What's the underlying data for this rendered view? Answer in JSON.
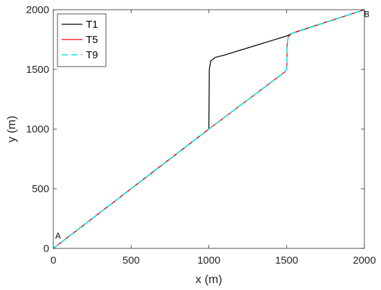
{
  "chart_data": {
    "type": "line",
    "title": "",
    "xlabel": "x (m)",
    "ylabel": "y (m)",
    "xlim": [
      0,
      2000
    ],
    "ylim": [
      0,
      2000
    ],
    "xticks": [
      0,
      500,
      1000,
      1500,
      2000
    ],
    "yticks": [
      0,
      500,
      1000,
      1500,
      2000
    ],
    "grid": false,
    "legend_position": "top-left",
    "series": [
      {
        "name": "T1",
        "color": "#000000",
        "style": "solid",
        "points": [
          [
            0,
            0
          ],
          [
            1000,
            1000
          ],
          [
            1003,
            1500
          ],
          [
            1012,
            1570
          ],
          [
            1040,
            1600
          ],
          [
            1100,
            1620
          ],
          [
            1500,
            1780
          ],
          [
            1550,
            1810
          ],
          [
            2000,
            2000
          ]
        ]
      },
      {
        "name": "T5",
        "color": "#ff0000",
        "style": "solid",
        "points": [
          [
            0,
            0
          ],
          [
            1000,
            1000
          ],
          [
            1490,
            1480
          ],
          [
            1500,
            1500
          ],
          [
            1502,
            1550
          ],
          [
            1503,
            1700
          ],
          [
            1510,
            1770
          ],
          [
            1530,
            1800
          ],
          [
            1560,
            1812
          ],
          [
            2000,
            2000
          ]
        ]
      },
      {
        "name": "T9",
        "color": "#00e5ee",
        "style": "dashed",
        "points": [
          [
            0,
            0
          ],
          [
            1000,
            1000
          ],
          [
            1490,
            1480
          ],
          [
            1500,
            1500
          ],
          [
            1502,
            1550
          ],
          [
            1503,
            1700
          ],
          [
            1510,
            1770
          ],
          [
            1530,
            1800
          ],
          [
            1560,
            1812
          ],
          [
            2000,
            2000
          ]
        ]
      }
    ],
    "annotations": [
      {
        "text": "A",
        "x": 30,
        "y": 80
      },
      {
        "text": "B",
        "x": 2015,
        "y": 1940
      }
    ]
  }
}
